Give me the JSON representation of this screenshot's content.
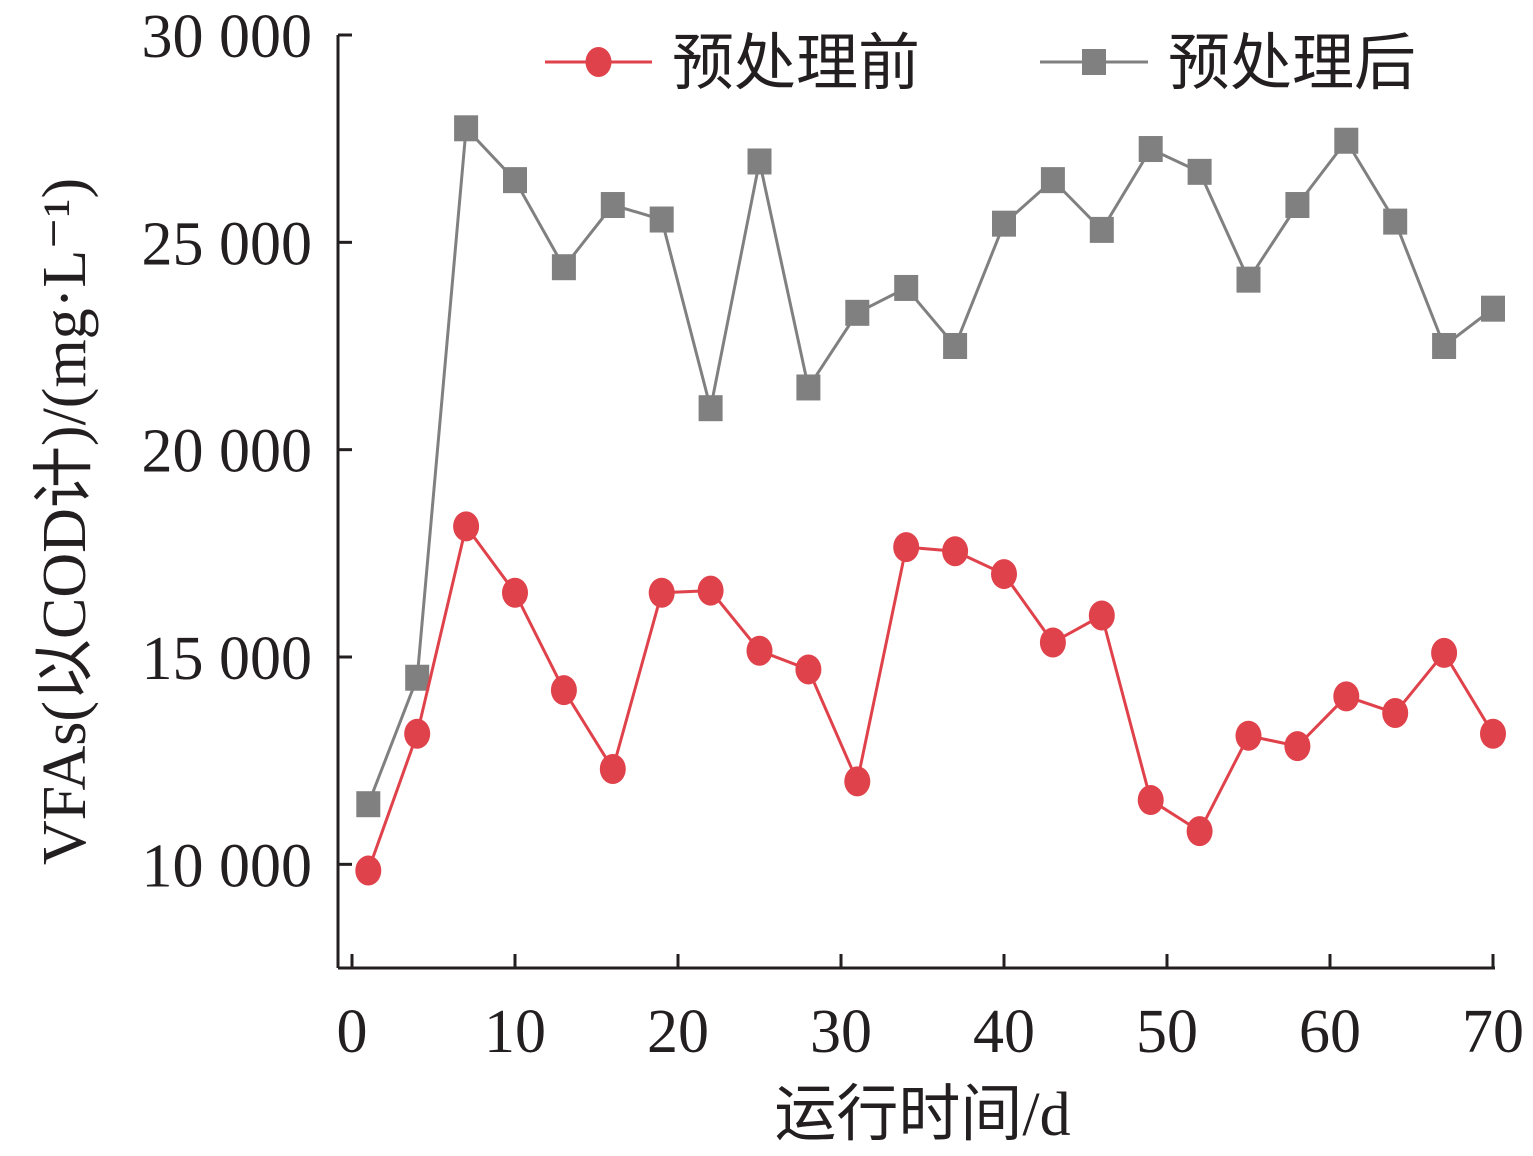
{
  "chart_data": {
    "type": "line",
    "title": "",
    "xlabel": "运行时间/d",
    "ylabel": "VFAs(以COD计)/(mg·L⁻¹)",
    "xlim": [
      0,
      70
    ],
    "ylim": [
      7500,
      30000
    ],
    "x_ticks": [
      0,
      10,
      20,
      30,
      40,
      50,
      60,
      70
    ],
    "x_tick_labels": [
      "0",
      "10",
      "20",
      "30",
      "40",
      "50",
      "60",
      "70"
    ],
    "y_ticks": [
      10000,
      15000,
      20000,
      25000,
      30000
    ],
    "y_tick_labels": [
      "10 000",
      "15 000",
      "20 000",
      "25 000",
      "30 000"
    ],
    "grid": false,
    "legend_position": "top",
    "x": [
      1,
      4,
      7,
      10,
      13,
      16,
      19,
      22,
      25,
      28,
      31,
      34,
      37,
      40,
      43,
      46,
      49,
      52,
      55,
      58,
      61,
      64,
      67,
      70
    ],
    "series": [
      {
        "name": "预处理前",
        "marker": "circle",
        "color": "#e0424b",
        "values": [
          9850,
          13150,
          18150,
          16550,
          14200,
          12300,
          16550,
          16600,
          15150,
          14700,
          12000,
          17650,
          17550,
          17000,
          15350,
          16000,
          11550,
          10800,
          13100,
          12850,
          14050,
          13650,
          15100,
          13150
        ]
      },
      {
        "name": "预处理后",
        "marker": "square",
        "color": "#808080",
        "values": [
          11450,
          14500,
          27750,
          26500,
          24400,
          25900,
          25550,
          21000,
          26950,
          21500,
          23300,
          23900,
          22500,
          25450,
          26500,
          25300,
          27250,
          26700,
          24100,
          25900,
          27450,
          25500,
          22500,
          23400
        ]
      }
    ]
  }
}
